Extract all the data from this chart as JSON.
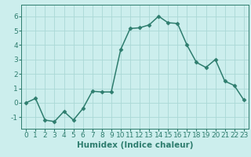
{
  "x": [
    0,
    1,
    2,
    3,
    4,
    5,
    6,
    7,
    8,
    9,
    10,
    11,
    12,
    13,
    14,
    15,
    16,
    17,
    18,
    19,
    20,
    21,
    22,
    23
  ],
  "y": [
    0.0,
    0.3,
    -1.2,
    -1.3,
    -0.6,
    -1.2,
    -0.4,
    0.8,
    0.75,
    0.75,
    3.7,
    5.15,
    5.2,
    5.4,
    6.0,
    5.55,
    5.5,
    4.0,
    2.8,
    2.45,
    3.0,
    1.5,
    1.2,
    0.2
  ],
  "line_color": "#2e7d6e",
  "marker": "D",
  "marker_size": 2.5,
  "bg_color": "#cceeed",
  "grid_color": "#aad8d6",
  "xlabel": "Humidex (Indice chaleur)",
  "ylim": [
    -1.8,
    6.8
  ],
  "xlim": [
    -0.5,
    23.5
  ],
  "yticks": [
    -1,
    0,
    1,
    2,
    3,
    4,
    5,
    6
  ],
  "xticks": [
    0,
    1,
    2,
    3,
    4,
    5,
    6,
    7,
    8,
    9,
    10,
    11,
    12,
    13,
    14,
    15,
    16,
    17,
    18,
    19,
    20,
    21,
    22,
    23
  ],
  "xlabel_fontsize": 7.5,
  "tick_fontsize": 6.5,
  "line_width": 1.1
}
